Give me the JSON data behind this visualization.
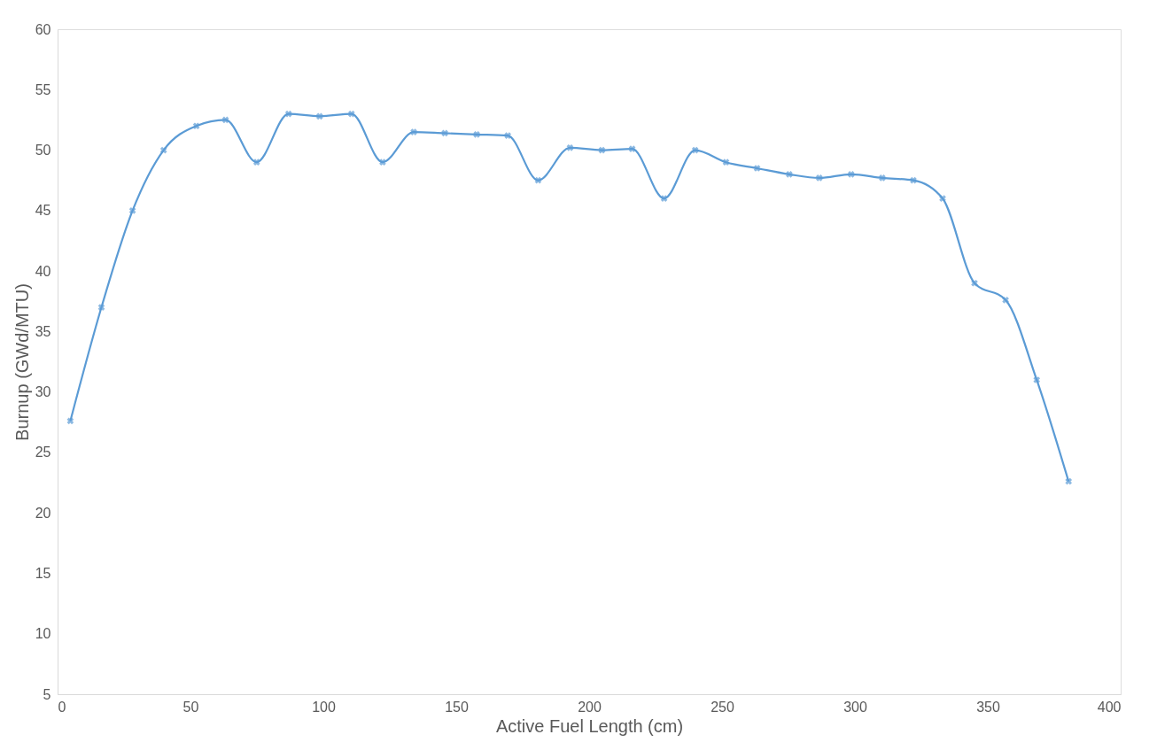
{
  "chart_data": {
    "type": "line",
    "xlabel": "Active Fuel Length (cm)",
    "ylabel": "Burnup (GWd/MTU)",
    "x": [
      4.8,
      16.5,
      28.2,
      39.9,
      52.2,
      63.2,
      74.9,
      86.9,
      98.6,
      110.6,
      122.3,
      134,
      145.7,
      157.7,
      169.4,
      180.8,
      192.8,
      204.8,
      216.2,
      228.2,
      239.9,
      251.5,
      263.2,
      275.3,
      286.6,
      298.6,
      310.3,
      322,
      333,
      345,
      356.7,
      368.4,
      380.4
    ],
    "series": [
      {
        "color": "#5b9bd5",
        "values": [
          27.6,
          37,
          45,
          50,
          52,
          52.5,
          49,
          53,
          52.8,
          53,
          49,
          51.5,
          51.4,
          51.3,
          51.2,
          47.5,
          50.2,
          50,
          50.1,
          46,
          50,
          49,
          48.5,
          48,
          47.7,
          48,
          47.7,
          47.5,
          46,
          39,
          37.6,
          31,
          22.6
        ]
      }
    ],
    "xlim": [
      0,
      400
    ],
    "xticks": [
      0,
      50,
      100,
      150,
      200,
      250,
      300,
      350,
      400
    ],
    "ylim": [
      5,
      60
    ],
    "yticks": [
      5,
      10,
      15,
      20,
      25,
      30,
      35,
      40,
      45,
      50,
      55,
      60
    ],
    "grid": false,
    "marker": "cross",
    "line_style": "solid"
  }
}
